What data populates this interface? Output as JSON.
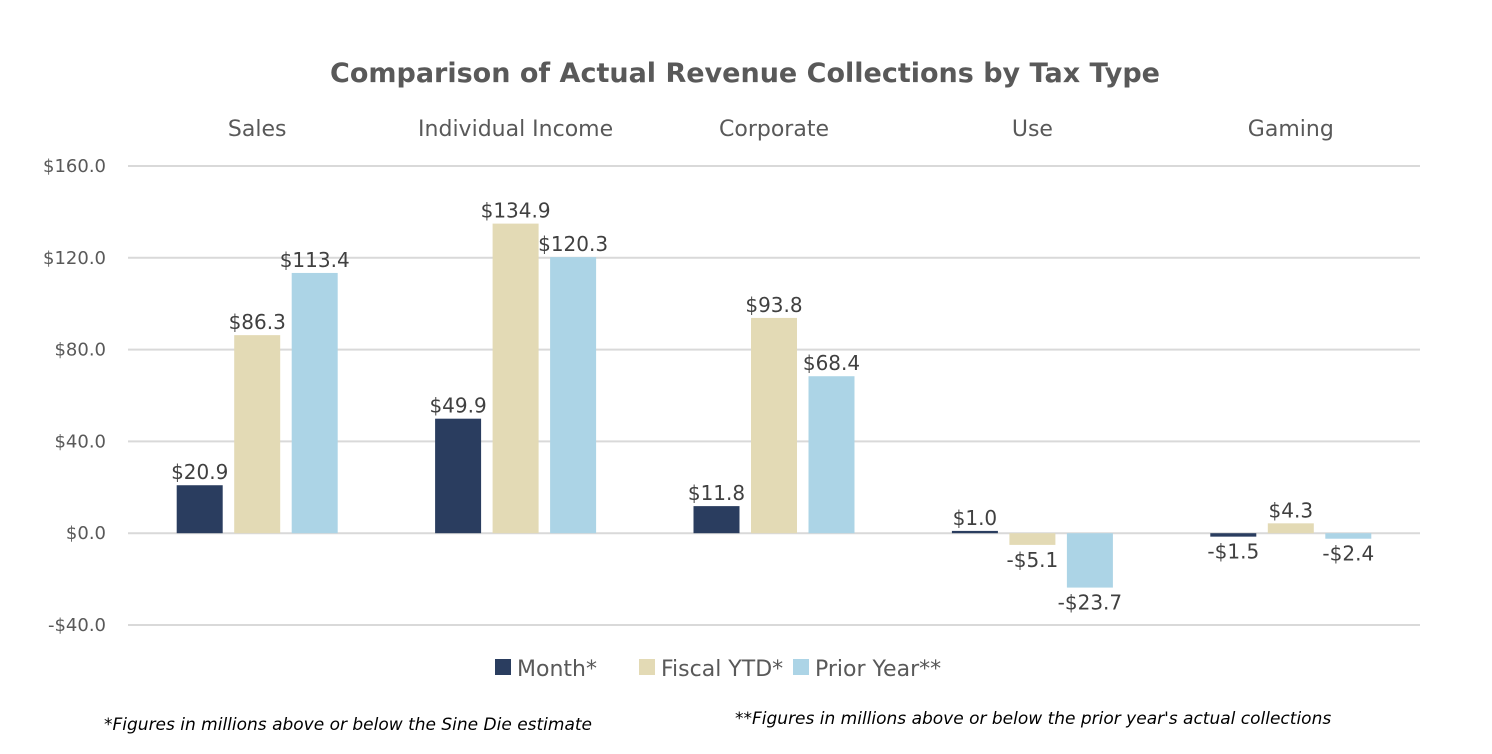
{
  "chart_data": {
    "type": "bar",
    "title": "Comparison of Actual Revenue Collections by Tax Type",
    "categories": [
      "Sales",
      "Individual Income",
      "Corporate",
      "Use",
      "Gaming"
    ],
    "series": [
      {
        "name": "Month*",
        "color": "#2a3d5f",
        "values": [
          20.9,
          49.9,
          11.8,
          1.0,
          -1.5
        ]
      },
      {
        "name": "Fiscal YTD*",
        "color": "#e3dab5",
        "values": [
          86.3,
          134.9,
          93.8,
          -5.1,
          4.3
        ]
      },
      {
        "name": "Prior Year**",
        "color": "#acd4e6",
        "values": [
          113.4,
          120.3,
          68.4,
          -23.7,
          -2.4
        ]
      }
    ],
    "data_labels": [
      [
        "$20.9",
        "$49.9",
        "$11.8",
        "$1.0",
        "-$1.5"
      ],
      [
        "$86.3",
        "$134.9",
        "$93.8",
        "-$5.1",
        "$4.3"
      ],
      [
        "$113.4",
        "$120.3",
        "$68.4",
        "-$23.7",
        "-$2.4"
      ]
    ],
    "ylim": [
      -40,
      160
    ],
    "yticks": [
      160,
      120,
      80,
      40,
      0,
      -40
    ],
    "ytick_labels": [
      "$160.0",
      "$120.0",
      "$80.0",
      "$40.0",
      "$0.0",
      "-$40.0"
    ],
    "xlabel": "",
    "ylabel": "",
    "category_axis_position": "top",
    "grid": true,
    "legend_position": "bottom"
  },
  "footnotes": {
    "left": "*Figures in millions above or below the Sine Die estimate",
    "right": "**Figures in millions above or below the prior year's actual collections"
  }
}
